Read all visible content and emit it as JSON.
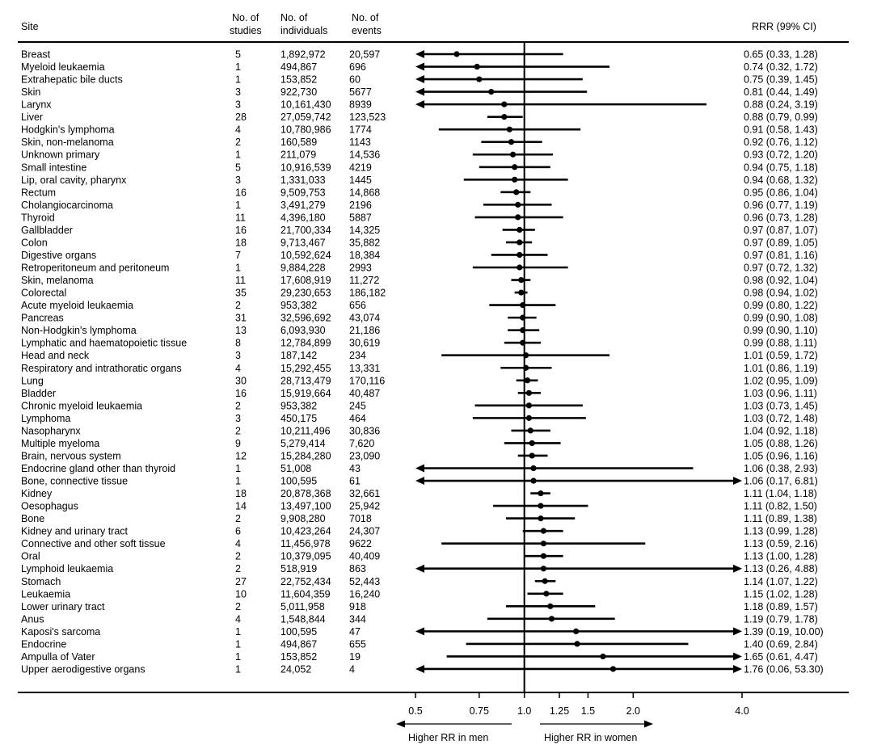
{
  "chart_data": {
    "type": "forest",
    "headers": {
      "site": "Site",
      "studies": [
        "No. of",
        "studies"
      ],
      "individuals": [
        "No. of",
        "individuals"
      ],
      "events": [
        "No. of",
        "events"
      ],
      "rrr": "RRR (99% CI)"
    },
    "reference_value": 1.0,
    "xscale": "log",
    "xlim": [
      0.5,
      4.0
    ],
    "ticks": [
      0.5,
      0.75,
      1.0,
      1.25,
      1.5,
      2.0,
      4.0
    ],
    "tick_labels": [
      "0.5",
      "0.75",
      "1.0",
      "1.25",
      "1.5",
      "2.0",
      "4.0"
    ],
    "direction_left": "Higher RR in men",
    "direction_right": "Higher RR in women",
    "rows": [
      {
        "site": "Breast",
        "studies": "5",
        "individuals": "1,892,972",
        "events": "20,597",
        "rrr": 0.65,
        "lo": 0.33,
        "hi": 1.28,
        "label": "0.65 (0.33, 1.28)"
      },
      {
        "site": "Myeloid leukaemia",
        "studies": "1",
        "individuals": "494,867",
        "events": "696",
        "rrr": 0.74,
        "lo": 0.32,
        "hi": 1.72,
        "label": "0.74 (0.32, 1.72)"
      },
      {
        "site": "Extrahepatic bile ducts",
        "studies": "1",
        "individuals": "153,852",
        "events": "60",
        "rrr": 0.75,
        "lo": 0.39,
        "hi": 1.45,
        "label": "0.75 (0.39, 1.45)"
      },
      {
        "site": "Skin",
        "studies": "3",
        "individuals": "922,730",
        "events": "5677",
        "rrr": 0.81,
        "lo": 0.44,
        "hi": 1.49,
        "label": "0.81 (0.44, 1.49)"
      },
      {
        "site": "Larynx",
        "studies": "3",
        "individuals": "10,161,430",
        "events": "8939",
        "rrr": 0.88,
        "lo": 0.24,
        "hi": 3.19,
        "label": "0.88 (0.24, 3.19)"
      },
      {
        "site": "Liver",
        "studies": "28",
        "individuals": "27,059,742",
        "events": "123,523",
        "rrr": 0.88,
        "lo": 0.79,
        "hi": 0.99,
        "label": "0.88 (0.79, 0.99)"
      },
      {
        "site": "Hodgkin's lymphoma",
        "studies": "4",
        "individuals": "10,780,986",
        "events": "1774",
        "rrr": 0.91,
        "lo": 0.58,
        "hi": 1.43,
        "label": "0.91 (0.58, 1.43)"
      },
      {
        "site": "Skin, non-melanoma",
        "studies": "2",
        "individuals": "160,589",
        "events": "1143",
        "rrr": 0.92,
        "lo": 0.76,
        "hi": 1.12,
        "label": "0.92 (0.76, 1.12)"
      },
      {
        "site": "Unknown primary",
        "studies": "1",
        "individuals": "211,079",
        "events": "14,536",
        "rrr": 0.93,
        "lo": 0.72,
        "hi": 1.2,
        "label": "0.93 (0.72, 1.20)"
      },
      {
        "site": "Small intestine",
        "studies": "5",
        "individuals": "10,916,539",
        "events": "4219",
        "rrr": 0.94,
        "lo": 0.75,
        "hi": 1.18,
        "label": "0.94 (0.75, 1.18)"
      },
      {
        "site": "Lip, oral cavity, pharynx",
        "studies": "3",
        "individuals": "1,331,033",
        "events": "1445",
        "rrr": 0.94,
        "lo": 0.68,
        "hi": 1.32,
        "label": "0.94 (0.68, 1.32)"
      },
      {
        "site": "Rectum",
        "studies": "16",
        "individuals": "9,509,753",
        "events": "14,868",
        "rrr": 0.95,
        "lo": 0.86,
        "hi": 1.04,
        "label": "0.95 (0.86, 1.04)"
      },
      {
        "site": "Cholangiocarcinoma",
        "studies": "1",
        "individuals": "3,491,279",
        "events": "2196",
        "rrr": 0.96,
        "lo": 0.77,
        "hi": 1.19,
        "label": "0.96 (0.77, 1.19)"
      },
      {
        "site": "Thyroid",
        "studies": "11",
        "individuals": "4,396,180",
        "events": "5887",
        "rrr": 0.96,
        "lo": 0.73,
        "hi": 1.28,
        "label": "0.96 (0.73, 1.28)"
      },
      {
        "site": "Gallbladder",
        "studies": "16",
        "individuals": "21,700,334",
        "events": "14,325",
        "rrr": 0.97,
        "lo": 0.87,
        "hi": 1.07,
        "label": "0.97 (0.87, 1.07)"
      },
      {
        "site": "Colon",
        "studies": "18",
        "individuals": "9,713,467",
        "events": "35,882",
        "rrr": 0.97,
        "lo": 0.89,
        "hi": 1.05,
        "label": "0.97 (0.89, 1.05)"
      },
      {
        "site": "Digestive organs",
        "studies": "7",
        "individuals": "10,592,624",
        "events": "18,384",
        "rrr": 0.97,
        "lo": 0.81,
        "hi": 1.16,
        "label": "0.97 (0.81, 1.16)"
      },
      {
        "site": "Retroperitoneum and peritoneum",
        "studies": "1",
        "individuals": "9,884,228",
        "events": "2993",
        "rrr": 0.97,
        "lo": 0.72,
        "hi": 1.32,
        "label": "0.97 (0.72, 1.32)"
      },
      {
        "site": "Skin, melanoma",
        "studies": "11",
        "individuals": "17,608,919",
        "events": "11,272",
        "rrr": 0.98,
        "lo": 0.92,
        "hi": 1.04,
        "label": "0.98 (0.92, 1.04)"
      },
      {
        "site": "Colorectal",
        "studies": "35",
        "individuals": "29,230,653",
        "events": "186,182",
        "rrr": 0.98,
        "lo": 0.94,
        "hi": 1.02,
        "label": "0.98 (0.94, 1.02)"
      },
      {
        "site": "Acute myeloid leukaemia",
        "studies": "2",
        "individuals": "953,382",
        "events": "656",
        "rrr": 0.99,
        "lo": 0.8,
        "hi": 1.22,
        "label": "0.99 (0.80, 1.22)"
      },
      {
        "site": "Pancreas",
        "studies": "31",
        "individuals": "32,596,692",
        "events": "43,074",
        "rrr": 0.99,
        "lo": 0.9,
        "hi": 1.08,
        "label": "0.99 (0.90, 1.08)"
      },
      {
        "site": "Non-Hodgkin's lymphoma",
        "studies": "13",
        "individuals": "6,093,930",
        "events": "21,186",
        "rrr": 0.99,
        "lo": 0.9,
        "hi": 1.1,
        "label": "0.99 (0.90, 1.10)"
      },
      {
        "site": "Lymphatic and haematopoietic tissue",
        "studies": "8",
        "individuals": "12,784,899",
        "events": "30,619",
        "rrr": 0.99,
        "lo": 0.88,
        "hi": 1.11,
        "label": "0.99 (0.88, 1.11)"
      },
      {
        "site": "Head and neck",
        "studies": "3",
        "individuals": "187,142",
        "events": "234",
        "rrr": 1.01,
        "lo": 0.59,
        "hi": 1.72,
        "label": "1.01 (0.59, 1.72)"
      },
      {
        "site": "Respiratory and intrathoratic organs",
        "studies": "4",
        "individuals": "15,292,455",
        "events": "13,331",
        "rrr": 1.01,
        "lo": 0.86,
        "hi": 1.19,
        "label": "1.01 (0.86, 1.19)"
      },
      {
        "site": "Lung",
        "studies": "30",
        "individuals": "28,713,479",
        "events": "170,116",
        "rrr": 1.02,
        "lo": 0.95,
        "hi": 1.09,
        "label": "1.02 (0.95, 1.09)"
      },
      {
        "site": "Bladder",
        "studies": "16",
        "individuals": "15,919,664",
        "events": "40,487",
        "rrr": 1.03,
        "lo": 0.96,
        "hi": 1.11,
        "label": "1.03 (0.96, 1.11)"
      },
      {
        "site": "Chronic myeloid leukaemia",
        "studies": "2",
        "individuals": "953,382",
        "events": "245",
        "rrr": 1.03,
        "lo": 0.73,
        "hi": 1.45,
        "label": "1.03 (0.73, 1.45)"
      },
      {
        "site": "Lymphoma",
        "studies": "3",
        "individuals": "450,175",
        "events": "464",
        "rrr": 1.03,
        "lo": 0.72,
        "hi": 1.48,
        "label": "1.03 (0.72, 1.48)"
      },
      {
        "site": "Nasopharynx",
        "studies": "2",
        "individuals": "10,211,496",
        "events": "30,836",
        "rrr": 1.04,
        "lo": 0.92,
        "hi": 1.18,
        "label": "1.04 (0.92, 1.18)"
      },
      {
        "site": "Multiple myeloma",
        "studies": "9",
        "individuals": "5,279,414",
        "events": "7,620",
        "rrr": 1.05,
        "lo": 0.88,
        "hi": 1.26,
        "label": "1.05 (0.88, 1.26)"
      },
      {
        "site": "Brain, nervous system",
        "studies": "12",
        "individuals": "15,284,280",
        "events": "23,090",
        "rrr": 1.05,
        "lo": 0.96,
        "hi": 1.16,
        "label": "1.05 (0.96, 1.16)"
      },
      {
        "site": "Endocrine gland other than thyroid",
        "studies": "1",
        "individuals": "51,008",
        "events": "43",
        "rrr": 1.06,
        "lo": 0.38,
        "hi": 2.93,
        "label": "1.06 (0.38, 2.93)"
      },
      {
        "site": "Bone, connective tissue",
        "studies": "1",
        "individuals": "100,595",
        "events": "61",
        "rrr": 1.06,
        "lo": 0.17,
        "hi": 6.81,
        "label": "1.06 (0.17, 6.81)"
      },
      {
        "site": "Kidney",
        "studies": "18",
        "individuals": "20,878,368",
        "events": "32,661",
        "rrr": 1.11,
        "lo": 1.04,
        "hi": 1.18,
        "label": "1.11 (1.04, 1.18)"
      },
      {
        "site": "Oesophagus",
        "studies": "14",
        "individuals": "13,497,100",
        "events": "25,942",
        "rrr": 1.11,
        "lo": 0.82,
        "hi": 1.5,
        "label": "1.11 (0.82, 1.50)"
      },
      {
        "site": "Bone",
        "studies": "2",
        "individuals": "9,908,280",
        "events": "7018",
        "rrr": 1.11,
        "lo": 0.89,
        "hi": 1.38,
        "label": "1.11 (0.89, 1.38)"
      },
      {
        "site": "Kidney and urinary tract",
        "studies": "6",
        "individuals": "10,423,264",
        "events": "24,307",
        "rrr": 1.13,
        "lo": 0.99,
        "hi": 1.28,
        "label": "1.13 (0.99, 1.28)"
      },
      {
        "site": "Connective and other soft tissue",
        "studies": "4",
        "individuals": "11,456,978",
        "events": "9622",
        "rrr": 1.13,
        "lo": 0.59,
        "hi": 2.16,
        "label": "1.13 (0.59, 2.16)"
      },
      {
        "site": "Oral",
        "studies": "2",
        "individuals": "10,379,095",
        "events": "40,409",
        "rrr": 1.13,
        "lo": 1.0,
        "hi": 1.28,
        "label": "1.13 (1.00, 1.28)"
      },
      {
        "site": "Lymphoid leukaemia",
        "studies": "2",
        "individuals": "518,919",
        "events": "863",
        "rrr": 1.13,
        "lo": 0.26,
        "hi": 4.88,
        "label": "1.13 (0.26, 4.88)"
      },
      {
        "site": "Stomach",
        "studies": "27",
        "individuals": "22,752,434",
        "events": "52,443",
        "rrr": 1.14,
        "lo": 1.07,
        "hi": 1.22,
        "label": "1.14 (1.07, 1.22)"
      },
      {
        "site": "Leukaemia",
        "studies": "10",
        "individuals": "11,604,359",
        "events": "16,240",
        "rrr": 1.15,
        "lo": 1.02,
        "hi": 1.28,
        "label": "1.15 (1.02, 1.28)"
      },
      {
        "site": "Lower urinary tract",
        "studies": "2",
        "individuals": "5,011,958",
        "events": "918",
        "rrr": 1.18,
        "lo": 0.89,
        "hi": 1.57,
        "label": "1.18 (0.89, 1.57)"
      },
      {
        "site": "Anus",
        "studies": "4",
        "individuals": "1,548,844",
        "events": "344",
        "rrr": 1.19,
        "lo": 0.79,
        "hi": 1.78,
        "label": "1.19 (0.79, 1.78)"
      },
      {
        "site": "Kaposi's sarcoma",
        "studies": "1",
        "individuals": "100,595",
        "events": "47",
        "rrr": 1.39,
        "lo": 0.19,
        "hi": 10.0,
        "label": "1.39 (0.19, 10.00)"
      },
      {
        "site": "Endocrine",
        "studies": "1",
        "individuals": "494,867",
        "events": "655",
        "rrr": 1.4,
        "lo": 0.69,
        "hi": 2.84,
        "label": "1.40 (0.69, 2.84)"
      },
      {
        "site": "Ampulla of Vater",
        "studies": "1",
        "individuals": "153,852",
        "events": "19",
        "rrr": 1.65,
        "lo": 0.61,
        "hi": 4.47,
        "label": "1.65 (0.61, 4.47)"
      },
      {
        "site": "Upper aerodigestive organs",
        "studies": "1",
        "individuals": "24,052",
        "events": "4",
        "rrr": 1.76,
        "lo": 0.06,
        "hi": 53.3,
        "label": "1.76 (0.06, 53.30)"
      }
    ]
  }
}
